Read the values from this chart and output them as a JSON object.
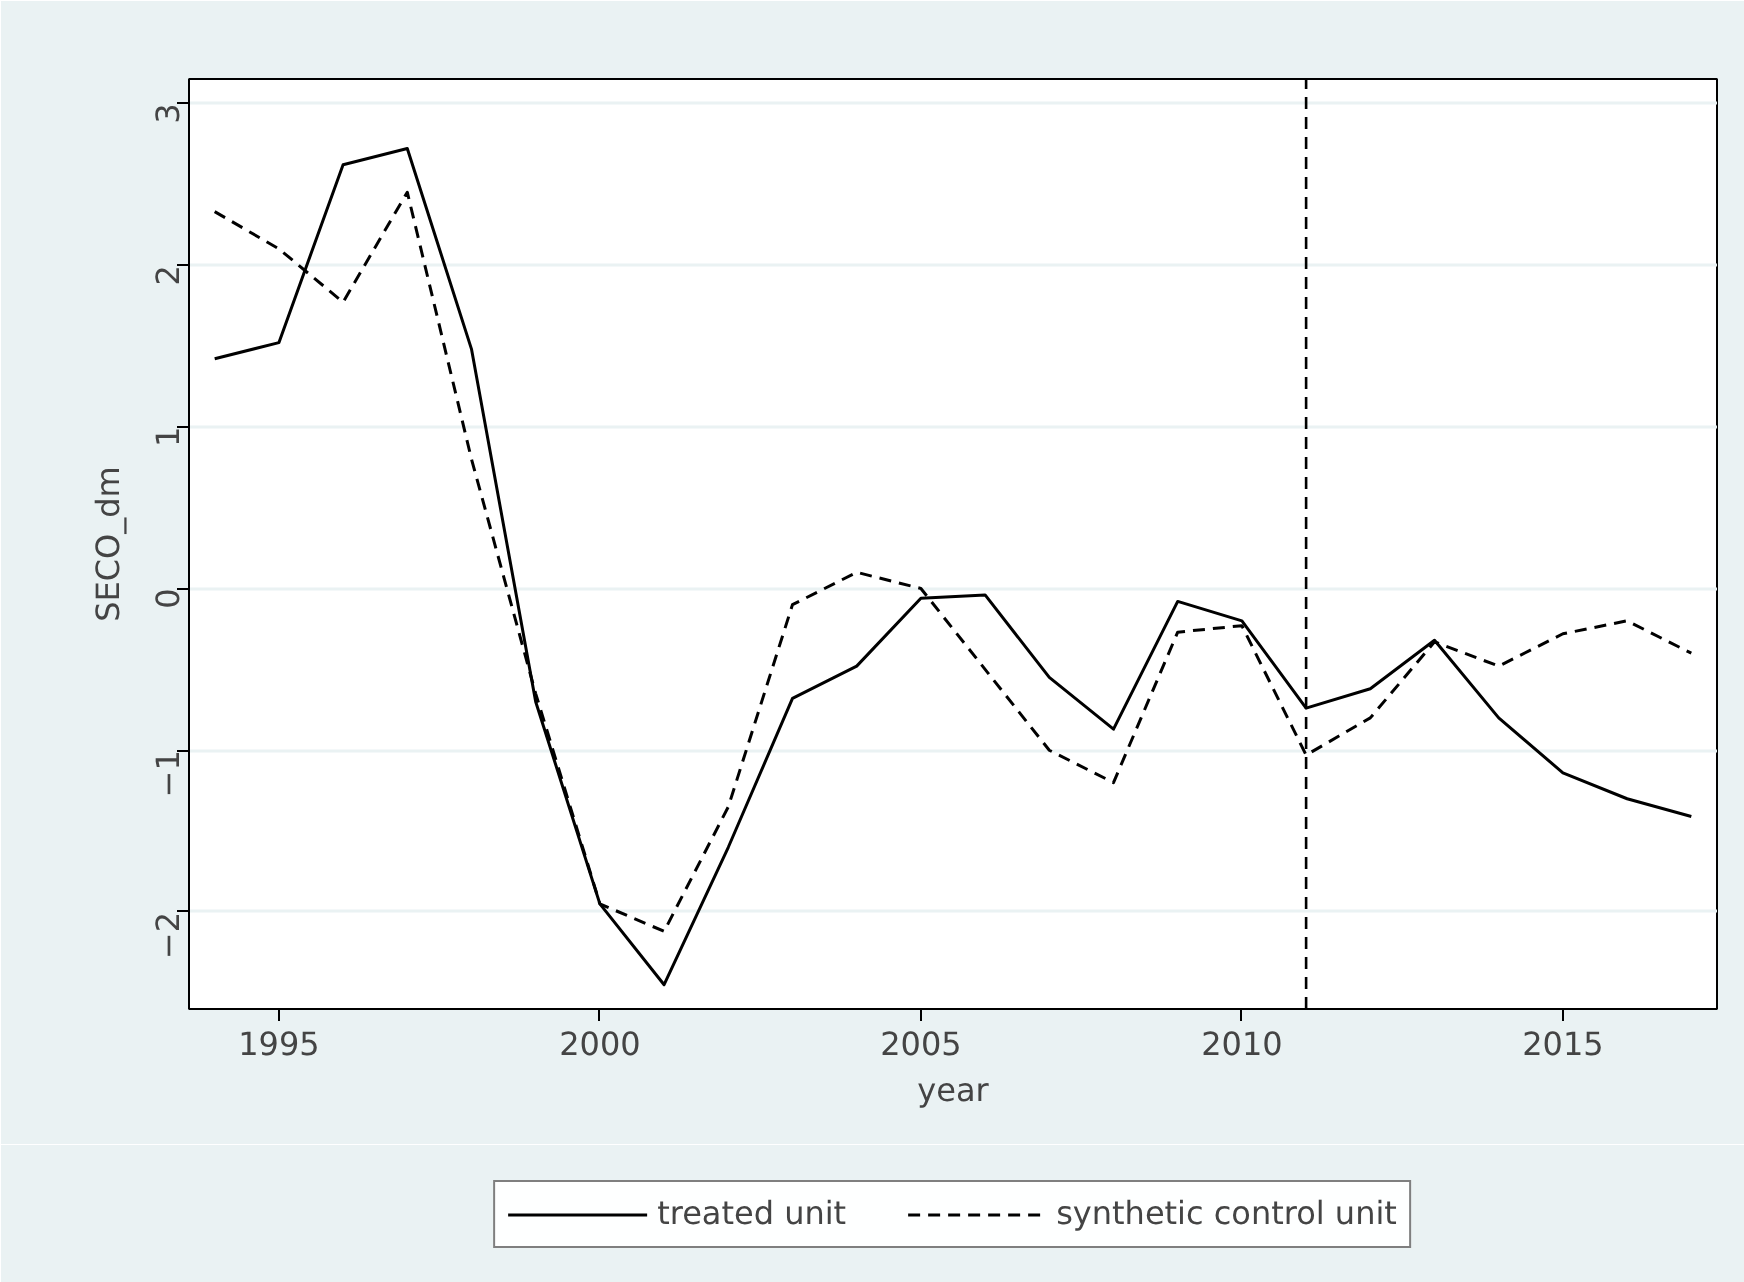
{
  "chart_data": {
    "type": "line",
    "xlabel": "year",
    "ylabel": "SECO_dm",
    "x": [
      1994,
      1995,
      1996,
      1997,
      1998,
      1999,
      2000,
      2001,
      2002,
      2003,
      2004,
      2005,
      2006,
      2007,
      2008,
      2009,
      2010,
      2011,
      2012,
      2013,
      2014,
      2015,
      2016,
      2017
    ],
    "series": [
      {
        "name": "treated unit",
        "color": "#000000",
        "line_style": "solid",
        "values": [
          1.42,
          1.52,
          2.62,
          2.72,
          1.48,
          -0.7,
          -1.95,
          -2.45,
          -1.6,
          -0.68,
          -0.48,
          -0.06,
          -0.04,
          -0.55,
          -0.87,
          -0.08,
          -0.2,
          -0.74,
          -0.62,
          -0.32,
          -0.8,
          -1.14,
          -1.3,
          -1.41
        ]
      },
      {
        "name": "synthetic control unit",
        "color": "#000000",
        "line_style": "dashed",
        "values": [
          2.33,
          2.1,
          1.77,
          2.45,
          0.8,
          -0.65,
          -1.95,
          -2.12,
          -1.35,
          -0.1,
          0.1,
          0.0,
          -0.5,
          -1.0,
          -1.2,
          -0.27,
          -0.23,
          -1.03,
          -0.8,
          -0.33,
          -0.48,
          -0.28,
          -0.2,
          -0.4
        ]
      }
    ],
    "xlim": [
      1993.6,
      2017.4
    ],
    "ylim": [
      -2.6,
      3.15
    ],
    "xticks": [
      1995,
      2000,
      2005,
      2010,
      2015
    ],
    "yticks": [
      -2,
      -1,
      0,
      1,
      2,
      3
    ],
    "ref_lines": [
      {
        "axis": "x",
        "value": 2011,
        "label": null,
        "color": "#000000",
        "line_style": "dashed"
      }
    ],
    "grid": "y",
    "legend": "bottom",
    "marker": "none"
  }
}
